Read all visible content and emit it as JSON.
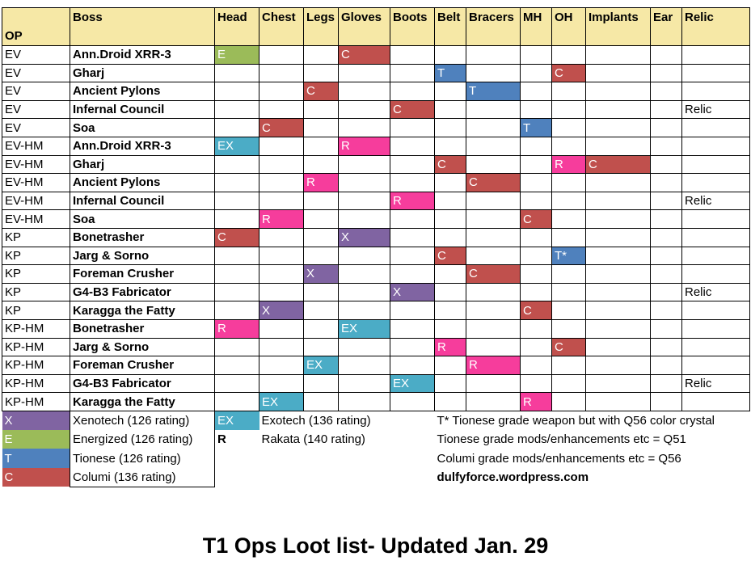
{
  "title": "T1 Ops Loot list- Updated Jan. 29",
  "columns": {
    "op": "OP",
    "boss": "Boss",
    "head": "Head",
    "chest": "Chest",
    "legs": "Legs",
    "gloves": "Gloves",
    "boots": "Boots",
    "belt": "Belt",
    "bracers": "Bracers",
    "mh": "MH",
    "oh": "OH",
    "implants": "Implants",
    "ear": "Ear",
    "relic": "Relic"
  },
  "colors": {
    "X": "#8064a2",
    "E": "#9bbb59",
    "T": "#4f81bd",
    "C": "#c0504d",
    "EX": "#4bacc6",
    "R": "#f63d9c",
    "header": "#f6e8a6"
  },
  "rows": [
    {
      "op": "EV",
      "boss": "Ann.Droid XRR-3",
      "head": "E",
      "chest": "",
      "legs": "",
      "gloves": "C",
      "boots": "",
      "belt": "",
      "bracers": "",
      "mh": "",
      "oh": "",
      "implants": "",
      "ear": "",
      "relic": ""
    },
    {
      "op": "EV",
      "boss": "Gharj",
      "head": "",
      "chest": "",
      "legs": "",
      "gloves": "",
      "boots": "",
      "belt": "T",
      "bracers": "",
      "mh": "",
      "oh": "C",
      "implants": "",
      "ear": "",
      "relic": ""
    },
    {
      "op": "EV",
      "boss": "Ancient Pylons",
      "head": "",
      "chest": "",
      "legs": "C",
      "gloves": "",
      "boots": "",
      "belt": "",
      "bracers": "T",
      "mh": "",
      "oh": "",
      "implants": "",
      "ear": "",
      "relic": ""
    },
    {
      "op": "EV",
      "boss": "Infernal Council",
      "head": "",
      "chest": "",
      "legs": "",
      "gloves": "",
      "boots": "C",
      "belt": "",
      "bracers": "",
      "mh": "",
      "oh": "",
      "implants": "",
      "ear": "",
      "relic": "Relic"
    },
    {
      "op": "EV",
      "boss": "Soa",
      "head": "",
      "chest": "C",
      "legs": "",
      "gloves": "",
      "boots": "",
      "belt": "",
      "bracers": "",
      "mh": "T",
      "oh": "",
      "implants": "",
      "ear": "",
      "relic": ""
    },
    {
      "op": "EV-HM",
      "boss": "Ann.Droid XRR-3",
      "head": "EX",
      "chest": "",
      "legs": "",
      "gloves": "R",
      "boots": "",
      "belt": "",
      "bracers": "",
      "mh": "",
      "oh": "",
      "implants": "",
      "ear": "",
      "relic": ""
    },
    {
      "op": "EV-HM",
      "boss": "Gharj",
      "head": "",
      "chest": "",
      "legs": "",
      "gloves": "",
      "boots": "",
      "belt": "C",
      "bracers": "",
      "mh": "",
      "oh": "R",
      "implants": "C",
      "ear": "",
      "relic": ""
    },
    {
      "op": "EV-HM",
      "boss": "Ancient Pylons",
      "head": "",
      "chest": "",
      "legs": "R",
      "gloves": "",
      "boots": "",
      "belt": "",
      "bracers": "C",
      "mh": "",
      "oh": "",
      "implants": "",
      "ear": "",
      "relic": ""
    },
    {
      "op": "EV-HM",
      "boss": "Infernal Council",
      "head": "",
      "chest": "",
      "legs": "",
      "gloves": "",
      "boots": "R",
      "belt": "",
      "bracers": "",
      "mh": "",
      "oh": "",
      "implants": "",
      "ear": "",
      "relic": "Relic"
    },
    {
      "op": "EV-HM",
      "boss": "Soa",
      "head": "",
      "chest": "R",
      "legs": "",
      "gloves": "",
      "boots": "",
      "belt": "",
      "bracers": "",
      "mh": "C",
      "oh": "",
      "implants": "",
      "ear": "",
      "relic": ""
    },
    {
      "op": "KP",
      "boss": "Bonetrasher",
      "head": "C",
      "chest": "",
      "legs": "",
      "gloves": "X",
      "boots": "",
      "belt": "",
      "bracers": "",
      "mh": "",
      "oh": "",
      "implants": "",
      "ear": "",
      "relic": ""
    },
    {
      "op": "KP",
      "boss": "Jarg & Sorno",
      "head": "",
      "chest": "",
      "legs": "",
      "gloves": "",
      "boots": "",
      "belt": "C",
      "bracers": "",
      "mh": "",
      "oh": "T*",
      "implants": "",
      "ear": "",
      "relic": ""
    },
    {
      "op": "KP",
      "boss": "Foreman Crusher",
      "head": "",
      "chest": "",
      "legs": "X",
      "gloves": "",
      "boots": "",
      "belt": "",
      "bracers": "C",
      "mh": "",
      "oh": "",
      "implants": "",
      "ear": "",
      "relic": ""
    },
    {
      "op": "KP",
      "boss": "G4-B3 Fabricator",
      "head": "",
      "chest": "",
      "legs": "",
      "gloves": "",
      "boots": "X",
      "belt": "",
      "bracers": "",
      "mh": "",
      "oh": "",
      "implants": "",
      "ear": "",
      "relic": "Relic"
    },
    {
      "op": "KP",
      "boss": "Karagga the Fatty",
      "head": "",
      "chest": "X",
      "legs": "",
      "gloves": "",
      "boots": "",
      "belt": "",
      "bracers": "",
      "mh": "C",
      "oh": "",
      "implants": "",
      "ear": "",
      "relic": ""
    },
    {
      "op": "KP-HM",
      "boss": "Bonetrasher",
      "head": "R",
      "chest": "",
      "legs": "",
      "gloves": "EX",
      "boots": "",
      "belt": "",
      "bracers": "",
      "mh": "",
      "oh": "",
      "implants": "",
      "ear": "",
      "relic": ""
    },
    {
      "op": "KP-HM",
      "boss": "Jarg & Sorno",
      "head": "",
      "chest": "",
      "legs": "",
      "gloves": "",
      "boots": "",
      "belt": "R",
      "bracers": "",
      "mh": "",
      "oh": "C",
      "implants": "",
      "ear": "",
      "relic": ""
    },
    {
      "op": "KP-HM",
      "boss": "Foreman Crusher",
      "head": "",
      "chest": "",
      "legs": "EX",
      "gloves": "",
      "boots": "",
      "belt": "",
      "bracers": "R",
      "mh": "",
      "oh": "",
      "implants": "",
      "ear": "",
      "relic": ""
    },
    {
      "op": "KP-HM",
      "boss": "G4-B3 Fabricator",
      "head": "",
      "chest": "",
      "legs": "",
      "gloves": "",
      "boots": "EX",
      "belt": "",
      "bracers": "",
      "mh": "",
      "oh": "",
      "implants": "",
      "ear": "",
      "relic": "Relic"
    },
    {
      "op": "KP-HM",
      "boss": "Karagga the Fatty",
      "head": "",
      "chest": "EX",
      "legs": "",
      "gloves": "",
      "boots": "",
      "belt": "",
      "bracers": "",
      "mh": "R",
      "oh": "",
      "implants": "",
      "ear": "",
      "relic": ""
    }
  ],
  "legend": {
    "left": [
      {
        "code": "X",
        "label": "Xenotech (126 rating)"
      },
      {
        "code": "E",
        "label": "Energized (126 rating)"
      },
      {
        "code": "T",
        "label": "Tionese (126 rating)"
      },
      {
        "code": "C",
        "label": "Columi (136 rating)"
      }
    ],
    "mid": [
      {
        "code": "EX",
        "label": "Exotech (136 rating)"
      },
      {
        "code": "R",
        "label": "Rakata (140 rating)"
      }
    ],
    "notes": [
      "T* Tionese grade weapon but with Q56 color crystal",
      "Tionese grade mods/enhancements etc = Q51",
      "Columi grade mods/enhancements etc = Q56"
    ],
    "site": "dulfyforce.wordpress.com"
  }
}
